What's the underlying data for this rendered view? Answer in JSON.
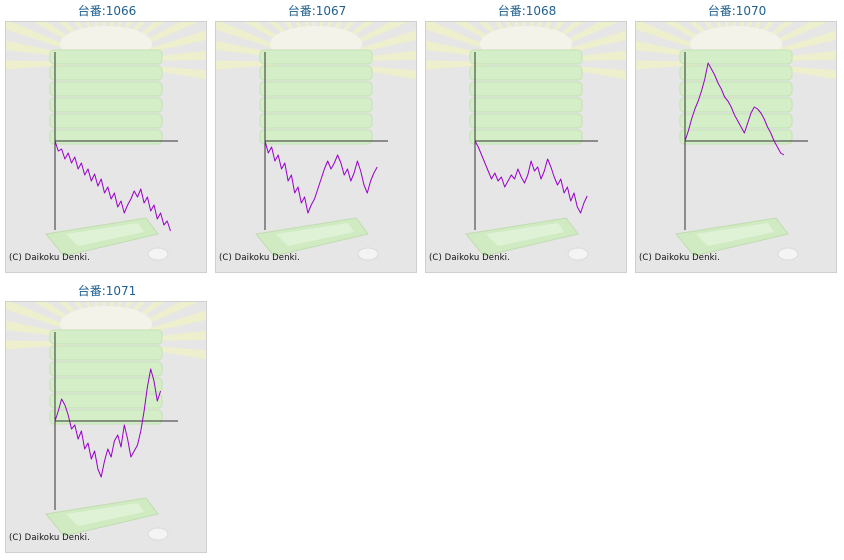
{
  "copyright": "(C) Daikoku Denki.",
  "colors": {
    "line": "#9900cc",
    "axis": "#333333",
    "title": "#1f5f8f",
    "background": "#e6e6e6"
  },
  "chart_data": [
    {
      "type": "line",
      "title": "台番:1066",
      "values": [
        0,
        -10,
        -8,
        -18,
        -12,
        -22,
        -16,
        -28,
        -22,
        -34,
        -28,
        -40,
        -33,
        -45,
        -38,
        -52,
        -46,
        -58,
        -52,
        -66,
        -60,
        -72,
        -64,
        -58,
        -50,
        -56,
        -48,
        -62,
        -56,
        -70,
        -64,
        -78,
        -72,
        -84,
        -80,
        -90
      ]
    },
    {
      "type": "line",
      "title": "台番:1067",
      "values": [
        0,
        -12,
        -6,
        -20,
        -14,
        -28,
        -22,
        -40,
        -34,
        -52,
        -46,
        -62,
        -56,
        -72,
        -64,
        -58,
        -48,
        -38,
        -28,
        -20,
        -28,
        -22,
        -14,
        -22,
        -34,
        -28,
        -40,
        -32,
        -20,
        -30,
        -44,
        -52,
        -40,
        -32,
        -26
      ]
    },
    {
      "type": "line",
      "title": "台番:1068",
      "values": [
        0,
        -6,
        -14,
        -22,
        -30,
        -38,
        -32,
        -40,
        -36,
        -46,
        -40,
        -34,
        -38,
        -28,
        -36,
        -42,
        -34,
        -20,
        -30,
        -26,
        -38,
        -30,
        -18,
        -26,
        -36,
        -44,
        -38,
        -52,
        -46,
        -60,
        -52,
        -66,
        -72,
        -62,
        -55
      ]
    },
    {
      "type": "line",
      "title": "台番:1070",
      "values": [
        0,
        10,
        22,
        32,
        40,
        50,
        62,
        78,
        72,
        66,
        58,
        52,
        44,
        40,
        34,
        26,
        20,
        14,
        8,
        18,
        28,
        34,
        32,
        28,
        22,
        14,
        8,
        0,
        -6,
        -12,
        -14
      ]
    },
    {
      "type": "line",
      "title": "台番:1071",
      "values": [
        0,
        10,
        22,
        16,
        6,
        -8,
        -4,
        -18,
        -10,
        -28,
        -22,
        -38,
        -30,
        -48,
        -56,
        -40,
        -28,
        -36,
        -20,
        -14,
        -26,
        -4,
        -18,
        -36,
        -30,
        -24,
        -10,
        10,
        34,
        52,
        40,
        20,
        30
      ]
    }
  ]
}
